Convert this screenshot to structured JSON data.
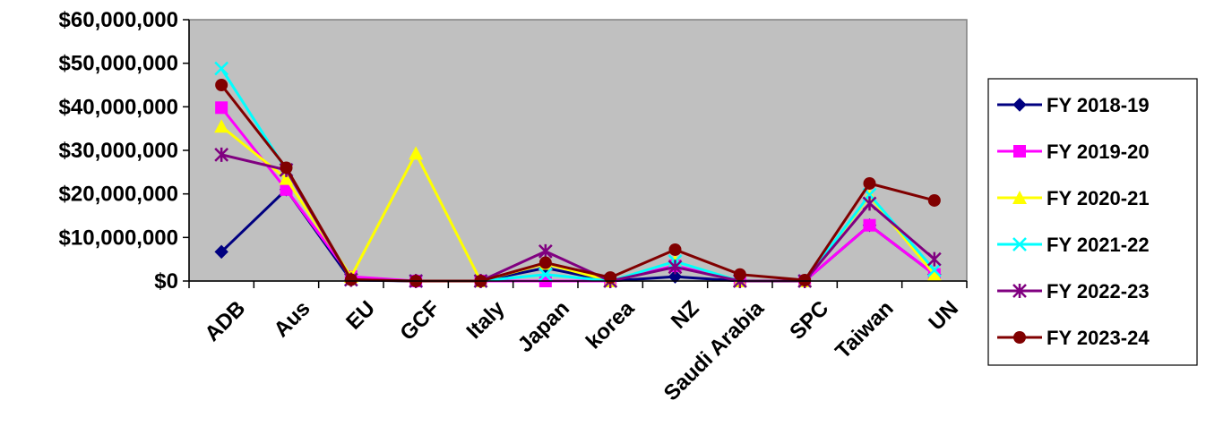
{
  "chart_data": {
    "type": "line",
    "title": "",
    "xlabel": "",
    "ylabel": "",
    "categories": [
      "ADB",
      "Aus",
      "EU",
      "GCF",
      "Italy",
      "Japan",
      "korea",
      "NZ",
      "Saudi Arabia",
      "SPC",
      "Taiwan",
      "UN"
    ],
    "ylim": [
      0,
      60000000
    ],
    "y_ticks": [
      0,
      10000000,
      20000000,
      30000000,
      40000000,
      50000000,
      60000000
    ],
    "y_tick_labels": [
      "$0",
      "$10,000,000",
      "$20,000,000",
      "$30,000,000",
      "$40,000,000",
      "$50,000,000",
      "$60,000,000"
    ],
    "grid": false,
    "plot_background": "#c0c0c0",
    "legend_position": "right",
    "series": [
      {
        "name": "FY 2018-19",
        "color": "#000080",
        "marker": "diamond",
        "values": [
          6700000,
          21000000,
          200000,
          0,
          0,
          3000000,
          0,
          1000000,
          0,
          0,
          12800000,
          1500000
        ]
      },
      {
        "name": "FY 2019-20",
        "color": "#ff00ff",
        "marker": "square",
        "values": [
          39800000,
          21000000,
          1000000,
          0,
          0,
          0,
          0,
          3500000,
          0,
          0,
          12800000,
          1500000
        ]
      },
      {
        "name": "FY 2020-21",
        "color": "#ffff00",
        "marker": "triangle",
        "values": [
          35500000,
          23500000,
          1000000,
          29300000,
          0,
          4000000,
          0,
          4500000,
          0,
          0,
          19500000,
          1500000
        ]
      },
      {
        "name": "FY 2021-22",
        "color": "#00ffff",
        "marker": "x",
        "values": [
          48800000,
          25500000,
          300000,
          0,
          0,
          1500000,
          0,
          4500000,
          0,
          0,
          19800000,
          2500000
        ]
      },
      {
        "name": "FY 2022-23",
        "color": "#800080",
        "marker": "star",
        "values": [
          29000000,
          25500000,
          300000,
          0,
          0,
          6800000,
          0,
          3200000,
          0,
          0,
          17800000,
          5000000
        ]
      },
      {
        "name": "FY 2023-24",
        "color": "#800000",
        "marker": "circle",
        "values": [
          45000000,
          26000000,
          300000,
          0,
          0,
          4200000,
          800000,
          7200000,
          1500000,
          200000,
          22400000,
          18500000
        ]
      }
    ]
  }
}
